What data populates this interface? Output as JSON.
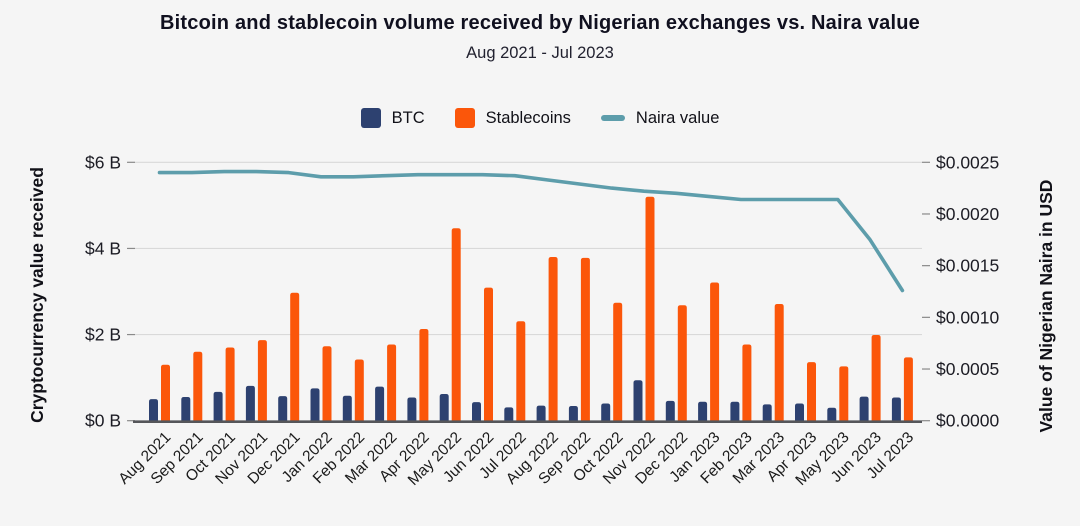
{
  "header": {
    "title": "Bitcoin and stablecoin volume received by Nigerian exchanges vs. Naira value",
    "subtitle": "Aug 2021 - Jul 2023"
  },
  "legend": [
    {
      "label": "BTC",
      "color": "#2d4170",
      "swatch": "square"
    },
    {
      "label": "Stablecoins",
      "color": "#fb560a",
      "swatch": "square"
    },
    {
      "label": "Naira value",
      "color": "#5d9dab",
      "swatch": "line"
    }
  ],
  "chart_data": {
    "type": "bar",
    "subtype": "grouped-bars-with-secondary-axis-line",
    "title": "Bitcoin and stablecoin volume received by Nigerian exchanges vs. Naira value",
    "subtitle": "Aug 2021 - Jul 2023",
    "categories": [
      "Aug 2021",
      "Sep 2021",
      "Oct 2021",
      "Nov 2021",
      "Dec 2021",
      "Jan 2022",
      "Feb 2022",
      "Mar 2022",
      "Apr 2022",
      "May 2022",
      "Jun 2022",
      "Jul 2022",
      "Aug 2022",
      "Sep 2022",
      "Oct 2022",
      "Nov 2022",
      "Dec 2022",
      "Jan 2023",
      "Feb 2023",
      "Mar 2023",
      "Apr 2023",
      "May 2023",
      "Jun 2023",
      "Jul 2023"
    ],
    "series": [
      {
        "name": "BTC",
        "render_as": "bar",
        "axis": "left",
        "color": "#2d4170",
        "unit": "billion USD",
        "values": [
          0.5,
          0.55,
          0.67,
          0.81,
          0.57,
          0.75,
          0.58,
          0.79,
          0.54,
          0.62,
          0.43,
          0.31,
          0.35,
          0.34,
          0.4,
          0.94,
          0.46,
          0.44,
          0.44,
          0.38,
          0.4,
          0.3,
          0.56,
          0.54
        ]
      },
      {
        "name": "Stablecoins",
        "render_as": "bar",
        "axis": "left",
        "color": "#fb560a",
        "unit": "billion USD",
        "values": [
          1.3,
          1.6,
          1.7,
          1.87,
          2.97,
          1.73,
          1.42,
          1.77,
          2.13,
          4.47,
          3.09,
          2.31,
          3.8,
          3.78,
          2.74,
          5.2,
          2.68,
          3.21,
          1.77,
          2.71,
          1.36,
          1.26,
          1.99,
          1.47
        ]
      },
      {
        "name": "Naira value",
        "render_as": "line",
        "axis": "right",
        "color": "#5d9dab",
        "unit": "USD per Naira",
        "values": [
          0.0024,
          0.0024,
          0.00241,
          0.00241,
          0.0024,
          0.00236,
          0.00236,
          0.00237,
          0.00238,
          0.00238,
          0.00238,
          0.00237,
          0.00233,
          0.00229,
          0.00225,
          0.00222,
          0.0022,
          0.00217,
          0.00214,
          0.00214,
          0.00214,
          0.00214,
          0.00175,
          0.00126
        ]
      }
    ],
    "left_axis": {
      "label": "Cryptocurrency value received",
      "tick_labels": [
        "$0 B",
        "$2 B",
        "$4 B",
        "$6 B"
      ],
      "tick_values": [
        0,
        2,
        4,
        6
      ],
      "range": [
        0,
        6
      ]
    },
    "right_axis": {
      "label": "Value of Nigerian Naira in USD",
      "tick_labels": [
        "$0.0000",
        "$0.0005",
        "$0.0010",
        "$0.0015",
        "$0.0020",
        "$0.0025"
      ],
      "tick_values": [
        0,
        0.0005,
        0.001,
        0.0015,
        0.002,
        0.0025
      ],
      "range": [
        0,
        0.0025
      ]
    },
    "grid": true,
    "legend_position": "top"
  },
  "colors": {
    "background": "#f5f5f5",
    "grid": "#d9d9d9",
    "axis_line": "#55565a",
    "tick_mark": "#8a8a8a",
    "tick_text": "#1c1c24",
    "x_label_text": "#1a1a1a"
  }
}
